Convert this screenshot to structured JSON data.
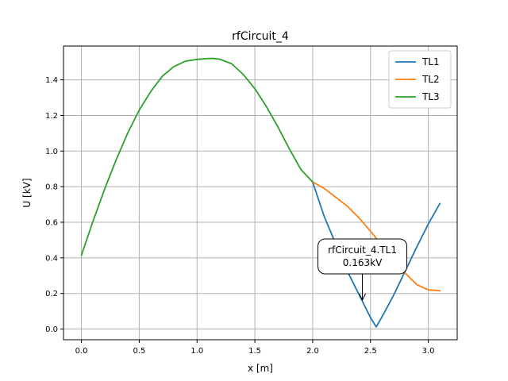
{
  "chart_data": {
    "type": "line",
    "title": "rfCircuit_4",
    "xlabel": "x [m]",
    "ylabel": "U [kV]",
    "xlim": [
      -0.155,
      3.25
    ],
    "ylim": [
      -0.06,
      1.59
    ],
    "xticks": [
      0.0,
      0.5,
      1.0,
      1.5,
      2.0,
      2.5,
      3.0
    ],
    "xtick_labels": [
      "0.0",
      "0.5",
      "1.0",
      "1.5",
      "2.0",
      "2.5",
      "3.0"
    ],
    "yticks": [
      0.0,
      0.2,
      0.4,
      0.6,
      0.8,
      1.0,
      1.2,
      1.4
    ],
    "ytick_labels": [
      "0.0",
      "0.2",
      "0.4",
      "0.6",
      "0.8",
      "1.0",
      "1.2",
      "1.4"
    ],
    "grid": true,
    "legend_position": "top-right",
    "series": [
      {
        "name": "TL1",
        "color": "#1f77b4",
        "x": [
          2.0,
          2.1,
          2.2,
          2.3,
          2.4,
          2.5,
          2.55,
          2.6,
          2.7,
          2.8,
          2.9,
          3.0,
          3.1
        ],
        "y": [
          0.826,
          0.632,
          0.478,
          0.325,
          0.195,
          0.065,
          0.012,
          0.069,
          0.19,
          0.325,
          0.46,
          0.59,
          0.705
        ]
      },
      {
        "name": "TL2",
        "color": "#ff7f0e",
        "x": [
          2.0,
          2.1,
          2.2,
          2.3,
          2.4,
          2.5,
          2.6,
          2.7,
          2.8,
          2.9,
          3.0,
          3.1
        ],
        "y": [
          0.826,
          0.79,
          0.74,
          0.69,
          0.625,
          0.55,
          0.47,
          0.39,
          0.315,
          0.25,
          0.22,
          0.215
        ]
      },
      {
        "name": "TL3",
        "color": "#2ca02c",
        "x": [
          0.0,
          0.1,
          0.2,
          0.3,
          0.4,
          0.5,
          0.6,
          0.7,
          0.8,
          0.9,
          1.0,
          1.1,
          1.15,
          1.2,
          1.3,
          1.4,
          1.5,
          1.6,
          1.7,
          1.8,
          1.9,
          2.0
        ],
        "y": [
          0.415,
          0.605,
          0.785,
          0.95,
          1.1,
          1.23,
          1.335,
          1.42,
          1.475,
          1.505,
          1.515,
          1.52,
          1.52,
          1.515,
          1.49,
          1.43,
          1.35,
          1.25,
          1.135,
          1.01,
          0.895,
          0.826
        ]
      }
    ],
    "annotation": {
      "lines": [
        "rfCircuit_4.TL1",
        "0.163kV"
      ],
      "x": 2.43,
      "y": 0.163
    }
  }
}
